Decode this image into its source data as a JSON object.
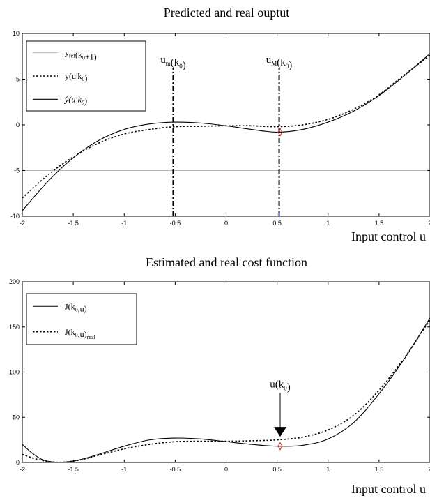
{
  "chart_data": [
    {
      "type": "line",
      "title": "Predicted and real ouptut",
      "xlabel": "Input control u",
      "ylabel": "",
      "xlim": [
        -2,
        2
      ],
      "ylim": [
        -10,
        10
      ],
      "xticks": [
        -2,
        -1.5,
        -1,
        -0.5,
        0,
        0.5,
        1,
        1.5,
        2
      ],
      "xtick_labels": [
        "-2",
        "-1.5",
        "-1",
        "-0.5",
        "0",
        "0.5",
        "1",
        "1.5",
        "2"
      ],
      "yticks": [
        -10,
        -5,
        0,
        5,
        10
      ],
      "ytick_labels": [
        "-10",
        "-5",
        "0",
        "5",
        "10"
      ],
      "grid": false,
      "legend_position": "top-left",
      "legend": [
        {
          "main": "y",
          "sub": "ref",
          "rest": "(k",
          "sub2": "0",
          "tail": "+1)"
        },
        {
          "main": "y(u|k",
          "sub": "0",
          "rest": ")",
          "sub2": "",
          "tail": ""
        },
        {
          "main": "ŷ(u|k",
          "sub": "0",
          "rest": ")",
          "sub2": "",
          "tail": ""
        }
      ],
      "series": [
        {
          "style": "solid-gray",
          "x": [
            -2,
            2
          ],
          "y": [
            -5,
            -5
          ]
        },
        {
          "style": "dotted",
          "x": [
            -2,
            -1.75,
            -1.5,
            -1.25,
            -1,
            -0.75,
            -0.5,
            -0.25,
            0,
            0.25,
            0.5,
            0.75,
            1,
            1.25,
            1.5,
            1.75,
            2
          ],
          "y": [
            -8.0,
            -5.5,
            -3.5,
            -2.0,
            -1.0,
            -0.5,
            -0.2,
            -0.15,
            -0.1,
            -0.1,
            -0.2,
            0.0,
            0.6,
            1.7,
            3.3,
            5.5,
            7.6
          ]
        },
        {
          "style": "solid",
          "x": [
            -2,
            -1.75,
            -1.5,
            -1.25,
            -1,
            -0.75,
            -0.5,
            -0.25,
            0,
            0.25,
            0.5,
            0.75,
            1,
            1.25,
            1.5,
            1.75,
            2
          ],
          "y": [
            -9.4,
            -6.2,
            -3.6,
            -1.7,
            -0.5,
            0.1,
            0.3,
            0.2,
            -0.1,
            -0.5,
            -0.8,
            -0.5,
            0.3,
            1.5,
            3.2,
            5.4,
            7.8
          ]
        }
      ],
      "markers": [
        {
          "x": 0.53,
          "y": -0.8,
          "shape": "diamond",
          "color": "#d12020"
        },
        {
          "x": 0.52,
          "y": -10,
          "shape": "tick",
          "color": "#1f3cff"
        }
      ],
      "vlines": [
        {
          "x": -0.52,
          "ybottom": -10,
          "ytop": 6.2,
          "label": {
            "main": "u",
            "sub": "m",
            "rest": "(k",
            "sub2": "0",
            "tail": ")"
          }
        },
        {
          "x": 0.52,
          "ybottom": -10,
          "ytop": 6.2,
          "label": {
            "main": "u",
            "sub": "M",
            "rest": "(k",
            "sub2": "0",
            "tail": ")"
          }
        }
      ]
    },
    {
      "type": "line",
      "title": "Estimated and real cost function",
      "xlabel": "Input control u",
      "ylabel": "",
      "xlim": [
        -2,
        2
      ],
      "ylim": [
        0,
        200
      ],
      "xticks": [
        -2,
        -1.5,
        -1,
        -0.5,
        0,
        0.5,
        1,
        1.5,
        2
      ],
      "xtick_labels": [
        "-2",
        "-1.5",
        "-1",
        "-0.5",
        "0",
        "0.5",
        "1",
        "1.5",
        "2"
      ],
      "yticks": [
        0,
        50,
        100,
        150,
        200
      ],
      "ytick_labels": [
        "0",
        "50",
        "100",
        "150",
        "200"
      ],
      "grid": false,
      "legend_position": "top-left",
      "legend": [
        {
          "main": "J(k",
          "sub": "0",
          "rest": ",u)",
          "sub2": "",
          "tail": ""
        },
        {
          "main": "J(k",
          "sub": "0",
          "rest": ",u)",
          "sub2": "real",
          "tail": ""
        }
      ],
      "series": [
        {
          "style": "solid",
          "x": [
            -2,
            -1.9,
            -1.8,
            -1.7,
            -1.6,
            -1.5,
            -1.4,
            -1.25,
            -1,
            -0.75,
            -0.5,
            -0.25,
            0,
            0.25,
            0.5,
            0.75,
            1,
            1.25,
            1.5,
            1.75,
            2
          ],
          "y": [
            20,
            10,
            3,
            0.5,
            0.3,
            1.5,
            4,
            9,
            18,
            25,
            27,
            26,
            23,
            20,
            18,
            19,
            26,
            44,
            76,
            115,
            160
          ]
        },
        {
          "style": "dotted",
          "x": [
            -2,
            -1.9,
            -1.8,
            -1.7,
            -1.6,
            -1.5,
            -1.4,
            -1.25,
            -1,
            -0.75,
            -0.5,
            -0.25,
            0,
            0.25,
            0.5,
            0.75,
            1,
            1.25,
            1.5,
            1.75,
            2
          ],
          "y": [
            9,
            5,
            2,
            0.5,
            0.3,
            1.5,
            3.5,
            8,
            15,
            20,
            23,
            23.5,
            23.5,
            24,
            25,
            28,
            36,
            52,
            80,
            116,
            158
          ]
        }
      ],
      "markers": [
        {
          "x": 0.53,
          "y": 18,
          "shape": "diamond",
          "color": "#d12020"
        }
      ],
      "arrow": {
        "x": 0.53,
        "ytop": 77,
        "ybottom": 30,
        "label": {
          "main": "u(k",
          "sub": "0",
          "rest": ")",
          "sub2": "",
          "tail": ""
        }
      }
    }
  ]
}
